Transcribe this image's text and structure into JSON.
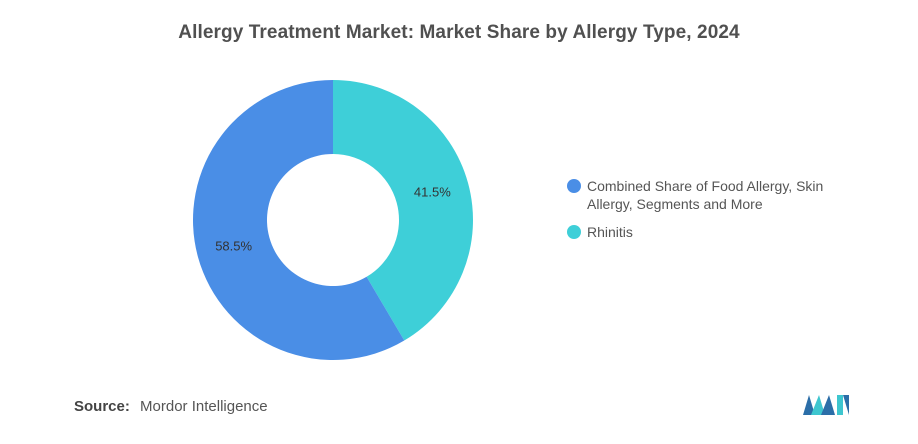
{
  "chart_data": {
    "type": "pie",
    "title": "Allergy Treatment Market: Market Share by Allergy Type, 2024",
    "donut": true,
    "slices": [
      {
        "label": "Rhinitis",
        "value": 41.5,
        "display": "41.5%",
        "color": "#3ecfd8"
      },
      {
        "label": "Combined Share of Food Allergy, Skin Allergy, Segments and More",
        "value": 58.5,
        "display": "58.5%",
        "color": "#4a8ee6"
      }
    ],
    "legend": {
      "placement": "right",
      "items": [
        {
          "label": "Combined Share of Food Allergy, Skin Allergy, Segments and More",
          "color": "#4a8ee6"
        },
        {
          "label": "Rhinitis",
          "color": "#3ecfd8"
        }
      ]
    }
  },
  "footer": {
    "source_label": "Source:",
    "source_value": "Mordor Intelligence",
    "logo_icon": "mordor-intelligence-logo-icon"
  }
}
